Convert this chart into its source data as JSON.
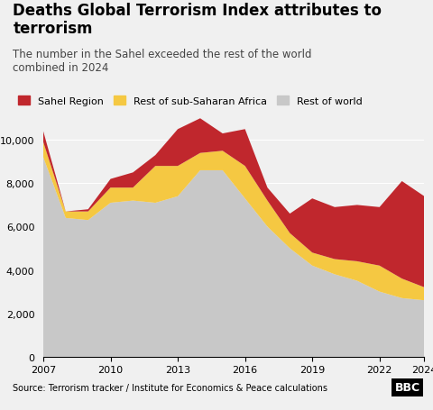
{
  "title": "Deaths Global Terrorism Index attributes to\nterrorism",
  "subtitle": "The number in the Sahel exceeded the rest of the world\ncombined in 2024",
  "source": "Source: Terrorism tracker / Institute for Economics & Peace calculations",
  "years": [
    2007,
    2008,
    2009,
    2010,
    2011,
    2012,
    2013,
    2014,
    2015,
    2016,
    2017,
    2018,
    2019,
    2020,
    2021,
    2022,
    2023,
    2024
  ],
  "rest_of_world": [
    9200,
    6400,
    6300,
    7100,
    7200,
    7100,
    7400,
    8600,
    8600,
    7300,
    6000,
    5000,
    4200,
    3800,
    3500,
    3000,
    2700,
    2600
  ],
  "rest_sub_saharan": [
    700,
    300,
    400,
    700,
    600,
    1700,
    1400,
    800,
    900,
    1500,
    1200,
    700,
    600,
    700,
    900,
    1200,
    900,
    600
  ],
  "sahel": [
    500,
    0,
    100,
    400,
    700,
    500,
    1700,
    1600,
    800,
    1700,
    600,
    900,
    2500,
    2400,
    2600,
    2700,
    4500,
    4200
  ],
  "colors": {
    "rest_of_world": "#c8c8c8",
    "rest_sub_saharan": "#f5c842",
    "sahel": "#c0272d"
  },
  "legend_labels": [
    "Sahel Region",
    "Rest of sub-Saharan Africa",
    "Rest of world"
  ],
  "ylim": [
    0,
    11000
  ],
  "yticks": [
    0,
    2000,
    4000,
    6000,
    8000,
    10000
  ],
  "background_color": "#f0f0f0",
  "footer_bg_color": "#d0d0d0",
  "bbc_label": "BBC"
}
